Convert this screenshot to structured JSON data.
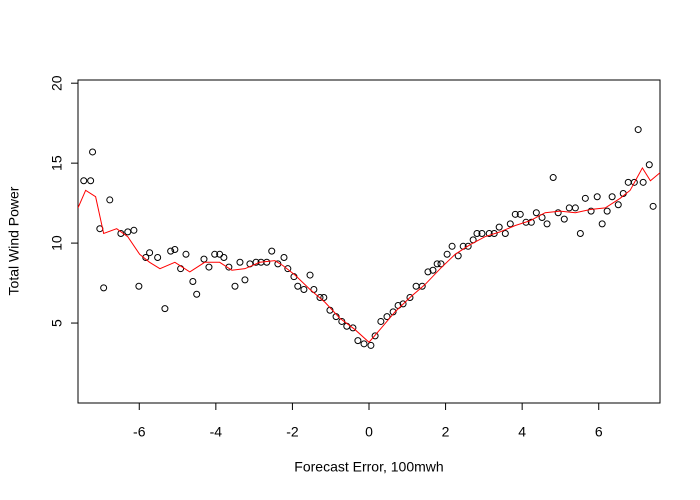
{
  "chart_data": {
    "type": "scatter",
    "xlabel": "Forecast Error, 100mwh",
    "ylabel": "Total Wind Power",
    "xlim": [
      -7.6,
      7.6
    ],
    "ylim": [
      0,
      20.2
    ],
    "xticks": [
      -6,
      -4,
      -2,
      0,
      2,
      4,
      6
    ],
    "yticks": [
      5,
      10,
      15,
      20
    ],
    "series": [
      {
        "type": "scatter",
        "color": "#000000",
        "x": [
          -7.45,
          -7.27,
          -7.22,
          -7.03,
          -6.93,
          -6.77,
          -6.48,
          -6.3,
          -6.14,
          -6.01,
          -5.83,
          -5.73,
          -5.52,
          -5.33,
          -5.18,
          -5.07,
          -4.92,
          -4.78,
          -4.6,
          -4.5,
          -4.31,
          -4.18,
          -4.03,
          -3.9,
          -3.79,
          -3.66,
          -3.5,
          -3.37,
          -3.24,
          -3.11,
          -2.95,
          -2.82,
          -2.67,
          -2.54,
          -2.38,
          -2.22,
          -2.12,
          -1.96,
          -1.86,
          -1.7,
          -1.54,
          -1.44,
          -1.28,
          -1.18,
          -1.02,
          -0.86,
          -0.71,
          -0.58,
          -0.42,
          -0.29,
          -0.13,
          0.05,
          0.16,
          0.31,
          0.47,
          0.63,
          0.76,
          0.89,
          1.07,
          1.23,
          1.39,
          1.54,
          1.67,
          1.78,
          1.88,
          2.04,
          2.17,
          2.33,
          2.46,
          2.59,
          2.72,
          2.82,
          2.95,
          3.14,
          3.27,
          3.4,
          3.56,
          3.69,
          3.82,
          3.95,
          4.1,
          4.24,
          4.37,
          4.52,
          4.65,
          4.81,
          4.94,
          5.1,
          5.23,
          5.39,
          5.52,
          5.65,
          5.8,
          5.96,
          6.09,
          6.22,
          6.35,
          6.51,
          6.64,
          6.77,
          6.93,
          7.03,
          7.16,
          7.32,
          7.42
        ],
        "y": [
          13.9,
          13.9,
          15.7,
          10.9,
          7.2,
          12.7,
          10.6,
          10.7,
          10.8,
          7.3,
          9.1,
          9.4,
          9.1,
          5.9,
          9.5,
          9.6,
          8.4,
          9.3,
          7.6,
          6.8,
          9.0,
          8.5,
          9.3,
          9.3,
          9.1,
          8.5,
          7.3,
          8.8,
          7.7,
          8.7,
          8.8,
          8.8,
          8.8,
          9.5,
          8.7,
          9.1,
          8.4,
          7.9,
          7.3,
          7.1,
          8.0,
          7.1,
          6.6,
          6.6,
          5.8,
          5.4,
          5.1,
          4.8,
          4.7,
          3.9,
          3.7,
          3.6,
          4.2,
          5.1,
          5.4,
          5.7,
          6.1,
          6.2,
          6.6,
          7.3,
          7.3,
          8.2,
          8.3,
          8.7,
          8.7,
          9.3,
          9.8,
          9.2,
          9.8,
          9.8,
          10.2,
          10.6,
          10.6,
          10.6,
          10.6,
          11.0,
          10.6,
          11.2,
          11.8,
          11.8,
          11.3,
          11.3,
          11.9,
          11.6,
          11.2,
          14.1,
          11.9,
          11.5,
          12.2,
          12.2,
          10.6,
          12.8,
          12.0,
          12.9,
          11.2,
          12.0,
          12.9,
          12.4,
          13.1,
          13.8,
          13.8,
          17.1,
          13.8,
          14.9,
          12.3
        ]
      },
      {
        "type": "line",
        "color": "#ff0000",
        "x": [
          -7.6,
          -7.4,
          -7.14,
          -6.93,
          -6.59,
          -6.3,
          -5.99,
          -5.73,
          -5.46,
          -5.07,
          -4.68,
          -4.29,
          -3.9,
          -3.58,
          -3.24,
          -2.85,
          -2.46,
          -2.25,
          -1.93,
          -1.54,
          -1.15,
          -0.76,
          -0.37,
          0.0,
          0.29,
          0.68,
          1.07,
          1.46,
          1.86,
          2.25,
          2.64,
          3.03,
          3.42,
          3.82,
          4.21,
          4.6,
          4.99,
          5.39,
          5.78,
          6.17,
          6.56,
          6.82,
          7.14,
          7.35,
          7.6
        ],
        "y": [
          12.2,
          13.3,
          12.9,
          10.6,
          10.9,
          10.4,
          9.3,
          8.8,
          8.4,
          8.8,
          8.2,
          8.8,
          8.8,
          8.3,
          8.4,
          8.8,
          8.9,
          8.6,
          8.0,
          7.1,
          6.3,
          5.3,
          4.6,
          3.8,
          4.6,
          5.7,
          6.6,
          7.4,
          8.4,
          9.3,
          9.9,
          10.4,
          10.7,
          11.1,
          11.4,
          11.9,
          12.0,
          11.9,
          12.1,
          12.2,
          12.8,
          13.3,
          14.7,
          13.9,
          14.4
        ]
      }
    ]
  }
}
